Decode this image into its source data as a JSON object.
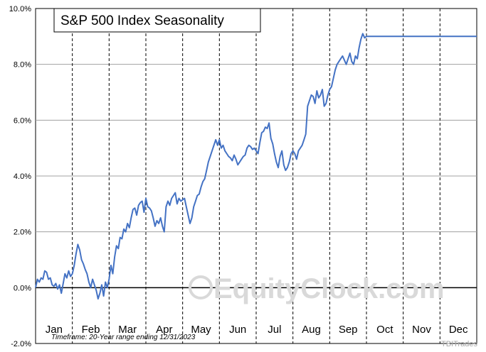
{
  "chart_data": {
    "type": "line",
    "title": "S&P 500 Index Seasonality",
    "footnote": "Timeframe: 20-Year range ending 12/31/2023",
    "watermark": "EquityClock.com",
    "watermark_small": "TBITrades",
    "y_unit": "%",
    "ylim": [
      -2.0,
      10.0
    ],
    "y_ticks": [
      "-2.0%",
      "0.0%",
      "2.0%",
      "4.0%",
      "6.0%",
      "8.0%",
      "10.0%"
    ],
    "y_tick_values": [
      -2,
      0,
      2,
      4,
      6,
      8,
      10
    ],
    "categories": [
      "Jan",
      "Feb",
      "Mar",
      "Apr",
      "May",
      "Jun",
      "Jul",
      "Aug",
      "Sep",
      "Oct",
      "Nov",
      "Dec"
    ],
    "xlim": [
      0,
      12
    ],
    "grid": true,
    "line_color": "#4472c4",
    "series": [
      {
        "x": [
          0.0,
          0.05,
          0.1,
          0.15,
          0.2,
          0.25,
          0.3,
          0.35,
          0.4,
          0.45,
          0.5,
          0.55,
          0.6,
          0.65,
          0.7,
          0.75,
          0.8,
          0.85,
          0.9,
          0.95,
          1.0,
          1.05,
          1.1,
          1.15,
          1.2,
          1.25,
          1.3,
          1.35,
          1.4,
          1.45,
          1.5,
          1.55,
          1.6,
          1.65,
          1.7,
          1.75,
          1.8,
          1.85,
          1.9,
          1.95,
          2.0,
          2.05,
          2.1,
          2.15,
          2.2,
          2.25,
          2.3,
          2.35,
          2.4,
          2.45,
          2.5,
          2.55,
          2.6,
          2.65,
          2.7,
          2.75,
          2.8,
          2.85,
          2.9,
          2.95,
          3.0,
          3.05,
          3.1,
          3.15,
          3.2,
          3.25,
          3.3,
          3.35,
          3.4,
          3.45,
          3.5,
          3.55,
          3.6,
          3.65,
          3.7,
          3.75,
          3.8,
          3.85,
          3.9,
          3.95,
          4.0,
          4.05,
          4.1,
          4.15,
          4.2,
          4.25,
          4.3,
          4.35,
          4.4,
          4.45,
          4.5,
          4.55,
          4.6,
          4.65,
          4.7,
          4.75,
          4.8,
          4.85,
          4.9,
          4.95,
          5.0,
          5.05,
          5.1,
          5.15,
          5.2,
          5.25,
          5.3,
          5.35,
          5.4,
          5.45,
          5.5,
          5.55,
          5.6,
          5.65,
          5.7,
          5.75,
          5.8,
          5.85,
          5.9,
          5.95,
          6.0,
          6.05,
          6.1,
          6.15,
          6.2,
          6.25,
          6.3,
          6.35,
          6.4,
          6.45,
          6.5,
          6.55,
          6.6,
          6.65,
          6.7,
          6.75,
          6.8,
          6.85,
          6.9,
          6.95,
          7.0,
          7.05,
          7.1,
          7.15,
          7.2,
          7.25,
          7.3,
          7.35,
          7.4,
          7.45,
          7.5,
          7.55,
          7.6,
          7.65,
          7.7,
          7.75,
          7.8,
          7.85,
          7.9,
          7.95,
          8.0,
          8.05,
          8.1,
          8.15,
          8.2,
          8.25,
          8.3,
          8.35,
          8.4,
          8.45,
          8.5,
          8.55,
          8.6,
          8.65,
          8.7,
          8.75,
          8.8,
          8.85,
          8.9,
          8.95,
          9.0,
          9.05,
          9.1,
          9.15,
          9.2,
          9.25,
          9.3,
          9.35,
          9.4,
          9.45,
          9.5,
          9.55,
          9.6,
          9.65,
          9.7,
          9.75,
          9.8,
          9.85,
          9.9,
          9.95,
          10.0,
          10.05,
          10.1,
          10.15,
          10.2,
          10.25,
          10.3,
          10.35,
          10.4,
          10.45,
          10.5,
          10.55,
          10.6,
          10.65,
          10.7,
          10.75,
          10.8,
          10.85,
          10.9,
          10.95,
          11.0,
          11.05,
          11.1,
          11.15,
          11.2,
          11.25,
          11.3,
          11.35,
          11.4,
          11.45,
          11.5,
          11.55,
          11.6,
          11.65,
          11.7,
          11.75,
          11.8,
          11.85,
          11.9,
          11.95,
          12.0
        ],
        "y": [
          0.0,
          0.3,
          0.2,
          0.35,
          0.3,
          0.6,
          0.55,
          0.3,
          0.35,
          0.1,
          0.05,
          0.15,
          -0.05,
          0.1,
          -0.2,
          0.15,
          0.5,
          0.35,
          0.6,
          0.4,
          0.5,
          0.8,
          1.2,
          1.55,
          1.35,
          1.0,
          0.85,
          0.65,
          0.5,
          0.2,
          0.0,
          0.3,
          0.1,
          -0.1,
          -0.4,
          -0.2,
          0.1,
          -0.3,
          0.2,
          0.0,
          0.3,
          0.8,
          0.5,
          1.1,
          1.5,
          1.4,
          1.8,
          1.75,
          2.1,
          2.0,
          2.3,
          2.15,
          2.5,
          2.8,
          2.85,
          2.6,
          2.95,
          3.05,
          3.1,
          2.7,
          3.2,
          2.9,
          2.85,
          2.75,
          2.5,
          2.2,
          2.4,
          2.3,
          2.5,
          2.2,
          2.0,
          2.9,
          3.1,
          2.95,
          3.2,
          3.3,
          3.4,
          3.0,
          3.2,
          3.1,
          3.15,
          3.2,
          2.9,
          2.6,
          2.3,
          2.5,
          2.9,
          3.1,
          3.3,
          3.35,
          3.6,
          3.8,
          3.9,
          4.2,
          4.5,
          4.7,
          4.9,
          5.1,
          5.3,
          5.1,
          5.3,
          5.0,
          5.1,
          4.9,
          4.8,
          4.7,
          4.65,
          4.55,
          4.75,
          4.6,
          4.4,
          4.5,
          4.6,
          4.7,
          4.75,
          5.0,
          5.1,
          5.05,
          4.95,
          5.0,
          4.9,
          4.8,
          5.2,
          5.55,
          5.6,
          5.75,
          5.7,
          5.9,
          5.35,
          5.15,
          4.8,
          4.5,
          4.3,
          4.7,
          4.9,
          4.4,
          4.2,
          4.3,
          4.5,
          4.8,
          4.9,
          4.8,
          4.6,
          4.9,
          5.0,
          5.1,
          5.3,
          5.5,
          6.5,
          6.7,
          6.9,
          6.85,
          6.6,
          7.05,
          6.8,
          6.9,
          7.1,
          6.5,
          6.6,
          6.9,
          7.1,
          7.2,
          7.5,
          7.8,
          8.0,
          8.1,
          8.2,
          8.3,
          8.15,
          8.0,
          8.2,
          8.4,
          8.1,
          8.0,
          8.3,
          8.2,
          8.6,
          8.9,
          9.1,
          8.95,
          9.0,
          9.0,
          9.0,
          9.0,
          9.0,
          9.0,
          9.0,
          9.0,
          9.0,
          9.0,
          9.0,
          9.0,
          9.0,
          9.0,
          9.0,
          9.0,
          9.0,
          9.0,
          9.0,
          9.0,
          9.0,
          9.0,
          9.0,
          9.0,
          9.0,
          9.0,
          9.0,
          9.0,
          9.0,
          9.0,
          9.0,
          9.0,
          9.0,
          9.0,
          9.0,
          9.0,
          9.0,
          9.0,
          9.0,
          9.0,
          9.0,
          9.0,
          9.0,
          9.0,
          9.0,
          9.0,
          9.0,
          9.0,
          9.0,
          9.0,
          9.0,
          9.0,
          9.0,
          9.0,
          9.0,
          9.0,
          9.0,
          9.0,
          9.0,
          9.0,
          9.0
        ]
      }
    ]
  }
}
